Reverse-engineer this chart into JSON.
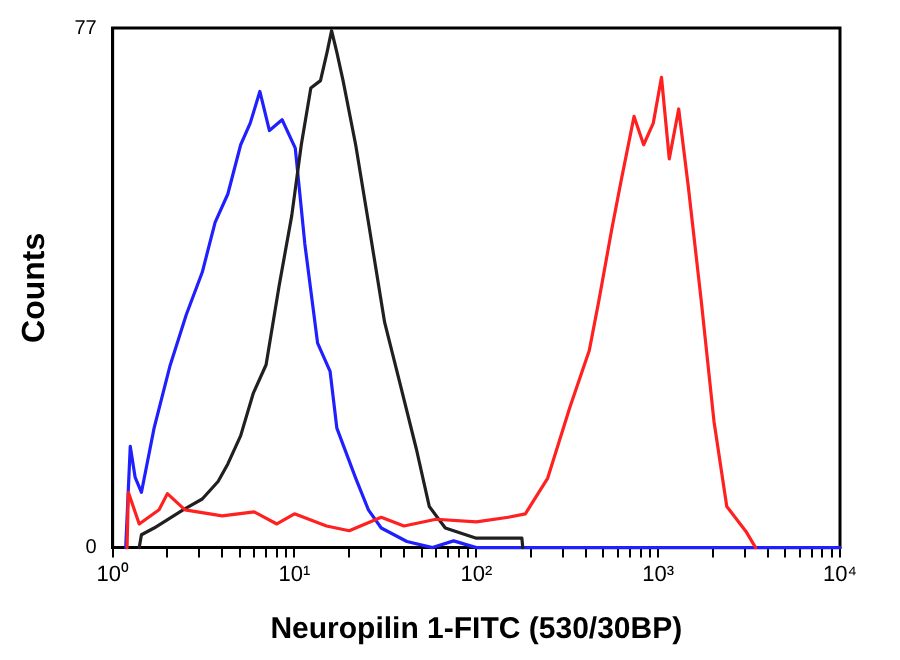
{
  "chart_data": {
    "type": "line",
    "xlabel": "Neuropilin 1-FITC (530/30BP)",
    "ylabel": "Counts",
    "log": "x",
    "marker": "none",
    "line_style": "solid",
    "xlim": [
      1,
      10000
    ],
    "ylim": [
      0,
      77
    ],
    "xticks": [
      {
        "value": 1,
        "label": "10⁰"
      },
      {
        "value": 2,
        "label": null
      },
      {
        "value": 3,
        "label": null
      },
      {
        "value": 4,
        "label": null
      },
      {
        "value": 5,
        "label": null
      },
      {
        "value": 6,
        "label": null
      },
      {
        "value": 7,
        "label": null
      },
      {
        "value": 8,
        "label": null
      },
      {
        "value": 9,
        "label": null
      },
      {
        "value": 10,
        "label": "10¹"
      },
      {
        "value": 20,
        "label": null
      },
      {
        "value": 30,
        "label": null
      },
      {
        "value": 40,
        "label": null
      },
      {
        "value": 50,
        "label": null
      },
      {
        "value": 60,
        "label": null
      },
      {
        "value": 70,
        "label": null
      },
      {
        "value": 80,
        "label": null
      },
      {
        "value": 90,
        "label": null
      },
      {
        "value": 100,
        "label": "10²"
      },
      {
        "value": 200,
        "label": null
      },
      {
        "value": 300,
        "label": null
      },
      {
        "value": 400,
        "label": null
      },
      {
        "value": 500,
        "label": null
      },
      {
        "value": 600,
        "label": null
      },
      {
        "value": 700,
        "label": null
      },
      {
        "value": 800,
        "label": null
      },
      {
        "value": 900,
        "label": null
      },
      {
        "value": 1000,
        "label": "10³"
      },
      {
        "value": 2000,
        "label": null
      },
      {
        "value": 3000,
        "label": null
      },
      {
        "value": 4000,
        "label": null
      },
      {
        "value": 5000,
        "label": null
      },
      {
        "value": 6000,
        "label": null
      },
      {
        "value": 7000,
        "label": null
      },
      {
        "value": 8000,
        "label": null
      },
      {
        "value": 9000,
        "label": null
      },
      {
        "value": 10000,
        "label": "10⁴"
      }
    ],
    "yticks": [
      0,
      77
    ],
    "series": [
      {
        "color": "#ff2020",
        "x": [
          1.2,
          1.22,
          1.4,
          1.8,
          2.0,
          2.5,
          4,
          6,
          8,
          10,
          15,
          20,
          30,
          40,
          60,
          100,
          150,
          186,
          247,
          327,
          418,
          472,
          555,
          627,
          737,
          832,
          940,
          1043,
          1151,
          1297,
          1466,
          1725,
          2028,
          2384,
          3040,
          3435
        ],
        "values": [
          0,
          8.2,
          3.5,
          5.6,
          8,
          5.6,
          4.7,
          5.3,
          3.5,
          5,
          3.2,
          2.5,
          4.5,
          3.2,
          4.2,
          3.8,
          4.5,
          5,
          10.3,
          20.8,
          29.2,
          36.6,
          47.1,
          54.5,
          63.9,
          59.7,
          62.9,
          69.7,
          57.6,
          65,
          53.4,
          36.6,
          18.7,
          6.1,
          2.4,
          0
        ]
      },
      {
        "color": "#202020",
        "x": [
          1.4,
          1.44,
          1.69,
          2.44,
          3.11,
          3.8,
          4.3,
          5.06,
          5.94,
          6.98,
          8.22,
          9.66,
          10.9,
          12.3,
          13.9,
          15.1,
          16,
          17.1,
          18.5,
          21.7,
          25.5,
          31.3,
          38.3,
          46.9,
          55.1,
          67.5,
          100,
          178,
          180
        ],
        "values": [
          0,
          1.9,
          2.9,
          5.6,
          7.2,
          9.8,
          12.4,
          16.6,
          22.9,
          27.1,
          38.7,
          49.2,
          59.7,
          68.1,
          69.2,
          73.4,
          76.6,
          73.4,
          69.2,
          59.7,
          48.2,
          33.4,
          24,
          14.5,
          6.1,
          2.9,
          1.4,
          1.4,
          0
        ]
      },
      {
        "color": "#2020ff",
        "x": [
          1.18,
          1.25,
          1.33,
          1.44,
          1.69,
          2.07,
          2.54,
          3.11,
          3.66,
          4.3,
          5.06,
          5.71,
          6.45,
          7.28,
          8.55,
          10.1,
          11.4,
          13.4,
          15.7,
          17.1,
          21.7,
          25.5,
          30,
          41.5,
          57.4,
          75,
          100,
          10000
        ],
        "values": [
          0,
          15,
          10.4,
          8.2,
          17.7,
          27,
          34.5,
          40.8,
          48.2,
          52.4,
          59.7,
          62.9,
          67.6,
          61.8,
          63.4,
          59.2,
          45,
          30.3,
          26.1,
          17.7,
          10.3,
          5.6,
          2.9,
          0.9,
          0,
          1,
          0,
          0
        ]
      }
    ]
  }
}
